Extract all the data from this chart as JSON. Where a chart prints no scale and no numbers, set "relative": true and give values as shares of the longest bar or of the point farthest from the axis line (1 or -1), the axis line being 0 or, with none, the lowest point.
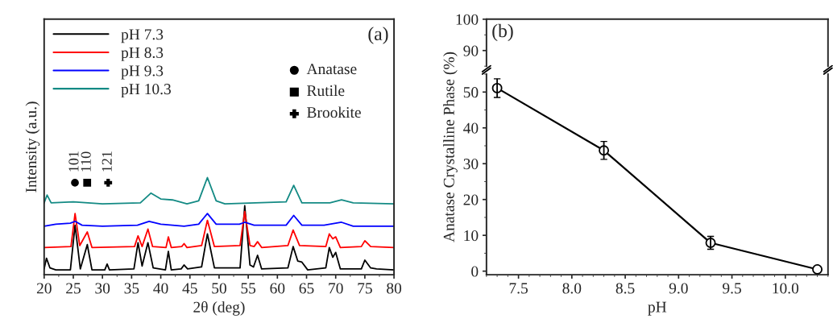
{
  "chart_data": [
    {
      "type": "line",
      "relative": true,
      "xlabel": "2θ (deg)",
      "ylabel": "Intensity (a.u.)",
      "xlim": [
        20,
        80
      ],
      "xticks": [
        20,
        25,
        30,
        35,
        40,
        45,
        50,
        55,
        60,
        65,
        70,
        75,
        80
      ],
      "tick_labels": "x",
      "legend": "top left",
      "grid": false,
      "series": [
        {
          "name": "pH 7.3",
          "color": "#000000",
          "x": [
            20,
            20.4,
            21,
            22,
            24.5,
            25.3,
            26.2,
            27.4,
            28.2,
            30.4,
            30.8,
            31.2,
            35.4,
            36.1,
            36.8,
            37.8,
            38.7,
            40.8,
            41.3,
            41.8,
            43.5,
            44,
            44.6,
            47,
            48,
            49.2,
            53.6,
            54.4,
            55.3,
            55.9,
            56.6,
            57.3,
            61.8,
            62.7,
            63.5,
            64.2,
            65.2,
            68.3,
            68.9,
            69.5,
            70,
            70.8,
            74.4,
            75,
            76,
            77,
            80
          ],
          "values": [
            0.06,
            0.17,
            0.07,
            0.05,
            0.05,
            0.51,
            0.06,
            0.31,
            0.05,
            0.05,
            0.11,
            0.05,
            0.06,
            0.33,
            0.09,
            0.33,
            0.07,
            0.05,
            0.24,
            0.05,
            0.06,
            0.1,
            0.06,
            0.08,
            0.42,
            0.07,
            0.07,
            0.71,
            0.1,
            0.08,
            0.2,
            0.06,
            0.07,
            0.29,
            0.14,
            0.13,
            0.05,
            0.07,
            0.28,
            0.18,
            0.23,
            0.06,
            0.06,
            0.15,
            0.07,
            0.06,
            0.05
          ]
        },
        {
          "name": "pH 8.3",
          "color": "#ff0000",
          "x": [
            20,
            24.6,
            25.3,
            26.1,
            27.4,
            28.2,
            35.5,
            36.1,
            36.8,
            37.8,
            38.6,
            40.9,
            41.3,
            41.8,
            43.6,
            44,
            44.5,
            47,
            48,
            49.2,
            53.6,
            54.4,
            55.3,
            56,
            56.6,
            57.3,
            61.8,
            62.7,
            63.8,
            68.3,
            68.9,
            69.5,
            70,
            70.8,
            74.4,
            75,
            76,
            80
          ],
          "values": [
            0.28,
            0.29,
            0.63,
            0.3,
            0.44,
            0.28,
            0.29,
            0.4,
            0.29,
            0.47,
            0.29,
            0.28,
            0.39,
            0.28,
            0.29,
            0.32,
            0.28,
            0.3,
            0.56,
            0.29,
            0.3,
            0.65,
            0.3,
            0.29,
            0.34,
            0.28,
            0.3,
            0.46,
            0.3,
            0.29,
            0.42,
            0.37,
            0.39,
            0.28,
            0.29,
            0.35,
            0.29,
            0.28
          ]
        },
        {
          "name": "pH 9.3",
          "color": "#0000ff",
          "x": [
            20,
            22,
            24.5,
            25.3,
            26.5,
            30,
            36,
            38,
            40,
            44,
            46.5,
            48,
            49.5,
            53.5,
            54.4,
            56,
            61.5,
            62.8,
            64.2,
            68,
            71,
            73,
            80
          ],
          "values": [
            0.5,
            0.52,
            0.53,
            0.55,
            0.51,
            0.5,
            0.51,
            0.55,
            0.52,
            0.5,
            0.52,
            0.63,
            0.52,
            0.52,
            0.54,
            0.51,
            0.51,
            0.61,
            0.51,
            0.51,
            0.54,
            0.5,
            0.5
          ]
        },
        {
          "name": "pH 10.3",
          "color": "#138a84",
          "x": [
            20,
            20.5,
            21.2,
            25,
            30,
            36.5,
            38.3,
            40,
            42,
            44.5,
            46.5,
            48,
            49.5,
            51,
            61.5,
            62.8,
            64.2,
            69,
            71,
            73,
            80
          ],
          "values": [
            0.74,
            0.82,
            0.74,
            0.75,
            0.73,
            0.74,
            0.84,
            0.78,
            0.77,
            0.73,
            0.76,
            1.0,
            0.76,
            0.73,
            0.75,
            0.92,
            0.74,
            0.74,
            0.77,
            0.74,
            0.73
          ]
        }
      ],
      "annotations": [
        "(a)",
        "Anatase",
        "Rutile",
        "Brookite",
        "101",
        "110",
        "121"
      ]
    },
    {
      "type": "line",
      "xlim": [
        7.2,
        10.4
      ],
      "ylim": [
        85,
        100
      ],
      "yticks": [
        90,
        100
      ],
      "tick_labels": "y",
      "grid": false,
      "annotations": [
        "(b)"
      ]
    },
    {
      "type": "line",
      "xlabel": "pH",
      "ylabel": "Anatase Crystalline Phase (%)",
      "x": [
        7.3,
        8.3,
        9.3,
        10.3
      ],
      "values": [
        51.1,
        33.7,
        7.9,
        0.5
      ],
      "errors": [
        2.6,
        2.5,
        1.8,
        null
      ],
      "color": "#000000",
      "marker": "circle",
      "grid": false,
      "xlim": [
        7.2,
        10.4
      ],
      "xticks": [
        7.5,
        {
          "value": 8,
          "label": "8.0"
        },
        8.5,
        {
          "value": 9,
          "label": "9.0"
        },
        9.5,
        {
          "value": 10,
          "label": "10.0"
        }
      ],
      "ylim": [
        -1,
        55
      ],
      "yticks": [
        0,
        10,
        20,
        30,
        40,
        50
      ]
    }
  ]
}
